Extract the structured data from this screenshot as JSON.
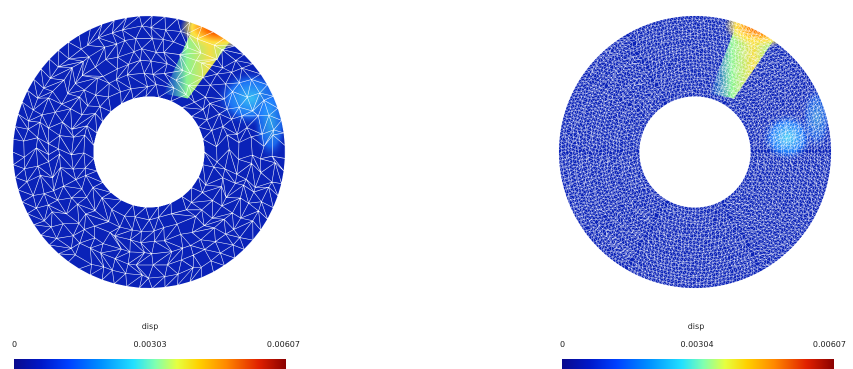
{
  "panels": [
    {
      "id": "coarse",
      "colorbar": {
        "title": "disp",
        "min": "0",
        "mid": "0.00303",
        "max": "0.00607"
      }
    },
    {
      "id": "fine",
      "colorbar": {
        "title": "disp",
        "min": "0",
        "mid": "0.00304",
        "max": "0.00607"
      }
    }
  ],
  "colors": {
    "background_field": "#0a22b8",
    "mesh_lines": "#ffffff",
    "hot": "#c81e00",
    "warm": "#ffe040",
    "cool": "#40d8ff"
  }
}
